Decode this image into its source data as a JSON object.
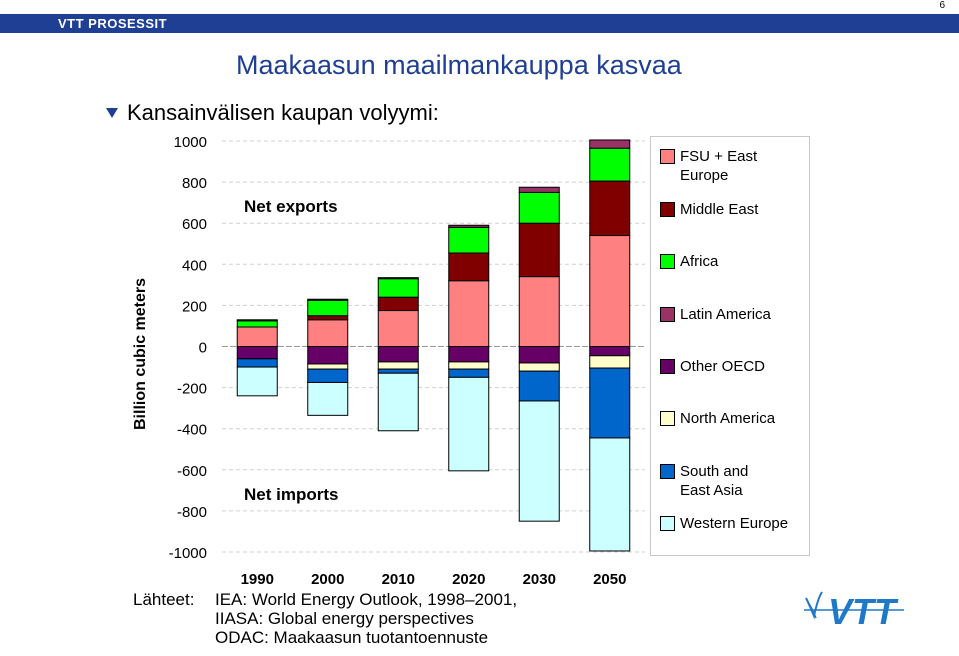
{
  "header": {
    "brand": "VTT PROSESSIT",
    "page_number": "6"
  },
  "title": "Maakaasun maailmankauppa kasvaa",
  "subtitle": "Kansainvälisen kaupan volyymi:",
  "sources": {
    "label": "Lähteet:",
    "lines": [
      "IEA: World Energy Outlook, 1998–2001,",
      "IIASA: Global energy perspectives",
      "ODAC: Maakaasun tuotantoennuste"
    ]
  },
  "logo": {
    "text": "VTT",
    "icon": "vtt-logo-icon"
  },
  "chart_data": {
    "type": "bar",
    "stacked": true,
    "categories": [
      "1990",
      "2000",
      "2010",
      "2020",
      "2030",
      "2050"
    ],
    "ylabel": "Billion cubic meters",
    "ylim": [
      -1000,
      1000
    ],
    "yticks": [
      1000,
      800,
      600,
      400,
      200,
      0,
      -200,
      -400,
      -600,
      -800,
      -1000
    ],
    "grid": true,
    "annotations": [
      "Net exports",
      "Net imports"
    ],
    "legend_position": "right",
    "series": [
      {
        "name": "FSU + East Europe",
        "color": "#ff8080",
        "values": [
          95,
          130,
          175,
          320,
          340,
          540
        ]
      },
      {
        "name": "Middle East",
        "color": "#800000",
        "values": [
          0,
          20,
          65,
          135,
          260,
          265
        ]
      },
      {
        "name": "Africa",
        "color": "#00ff00",
        "values": [
          30,
          75,
          90,
          125,
          150,
          160
        ]
      },
      {
        "name": "Latin America",
        "color": "#993366",
        "values": [
          5,
          5,
          5,
          10,
          25,
          40
        ]
      },
      {
        "name": "Other OECD",
        "color": "#660066",
        "values": [
          -60,
          -85,
          -75,
          -75,
          -80,
          -45
        ]
      },
      {
        "name": "North America",
        "color": "#ffffcc",
        "values": [
          0,
          -25,
          -35,
          -35,
          -40,
          -60
        ]
      },
      {
        "name": "South and East Asia",
        "color": "#0066cc",
        "values": [
          -40,
          -65,
          -20,
          -40,
          -145,
          -340
        ]
      },
      {
        "name": "Western Europe",
        "color": "#ccffff",
        "values": [
          -140,
          -160,
          -280,
          -455,
          -585,
          -550
        ]
      }
    ]
  }
}
